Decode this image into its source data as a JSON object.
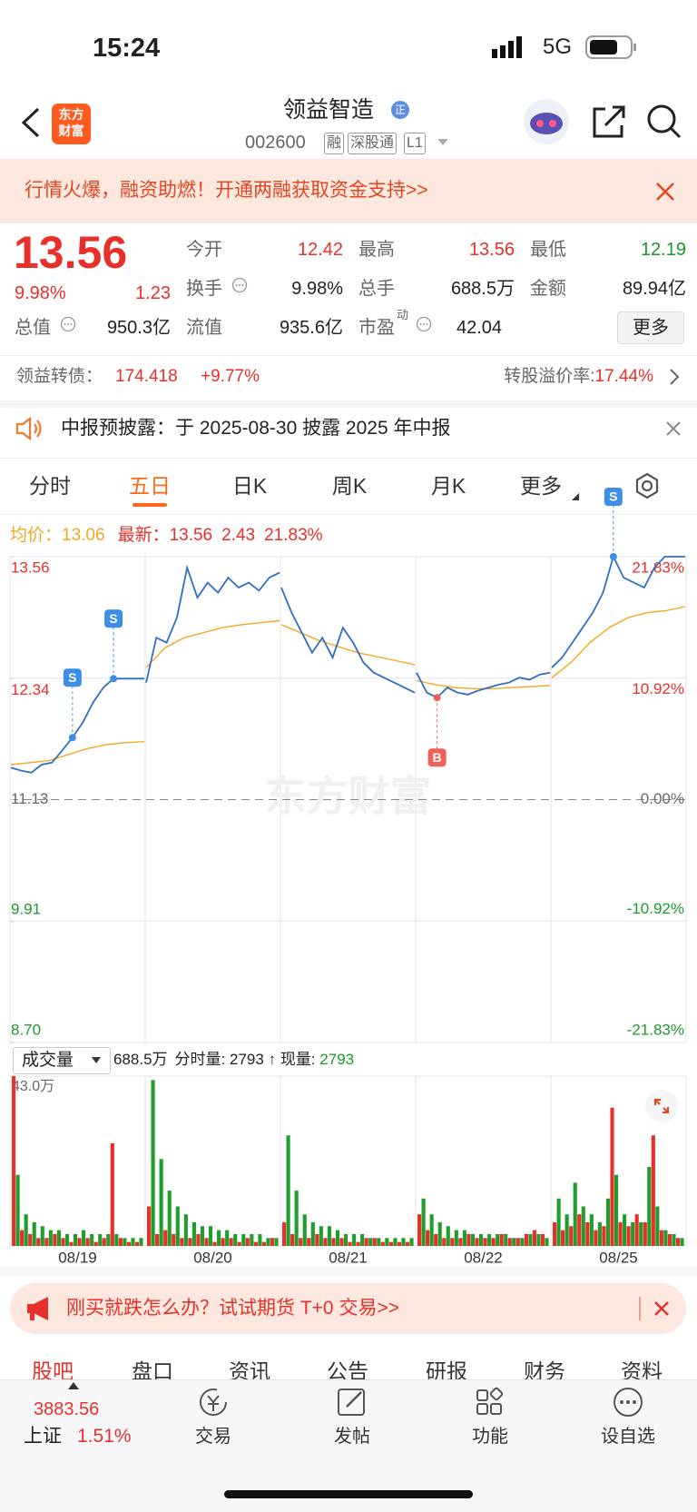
{
  "status_bar": {
    "time": "15:24",
    "network": "5G"
  },
  "header": {
    "logo": [
      "东方",
      "财富"
    ],
    "name": "领益智造",
    "badge": "正",
    "code": "002600",
    "tags": [
      "融",
      "深股通",
      "L1"
    ]
  },
  "promo": "行情火爆，融资助燃！开通两融获取资金支持>>",
  "quote": {
    "price": "13.56",
    "change_pct": "9.98%",
    "change": "1.23",
    "stats": [
      {
        "label": "今开",
        "value": "12.42"
      },
      {
        "label": "最高",
        "value": "13.56"
      },
      {
        "label": "最低",
        "value": "12.19"
      },
      {
        "label": "换手",
        "value": "9.98%"
      },
      {
        "label": "总手",
        "value": "688.5万"
      },
      {
        "label": "金额",
        "value": "89.94亿"
      },
      {
        "label": "总值",
        "value": "950.3亿"
      },
      {
        "label": "流值",
        "value": "935.6亿"
      },
      {
        "label": "市盈",
        "sup": "动",
        "value": "42.04"
      }
    ],
    "more": "更多"
  },
  "bond": {
    "label": "领益转债：",
    "price": "174.418",
    "change_pct": "+9.77%",
    "premium_label": "转股溢价率:",
    "premium": "17.44%"
  },
  "notice": "中报预披露：于 2025-08-30 披露 2025 年中报",
  "tabs": [
    "分时",
    "五日",
    "日K",
    "周K",
    "月K",
    "更多"
  ],
  "chart_info": {
    "avg": "13.06",
    "latest": "13.56",
    "change": "2.43",
    "change_pct": "21.83%"
  },
  "volume_info": {
    "selector": "成交量",
    "total": "688.5万",
    "tick_label": "分时量:",
    "tick_value": "2793",
    "arrow": "↑",
    "current_label": "现量:",
    "current_value": "2793"
  },
  "chart_data": [
    {
      "type": "line",
      "watermark": "东方财富",
      "ylim": [
        8.7,
        13.56
      ],
      "yticks": [
        13.56,
        12.34,
        11.13,
        9.91,
        {
          "value": 8.7,
          "label": "8.70"
        }
      ],
      "y2lim": [
        -21.83,
        21.83
      ],
      "y2ticks": [
        {
          "value": 21.83,
          "label": "21.83%"
        },
        {
          "value": 10.92,
          "label": "10.92%"
        },
        {
          "value": 0,
          "label": "0.00%"
        },
        {
          "value": -10.92,
          "label": "-10.92%"
        },
        {
          "value": -21.83,
          "label": "-21.83%"
        }
      ],
      "series": [
        {
          "name": "均价：",
          "color": "#f5a623",
          "values": [
            [
              11.48,
              11.5,
              11.52,
              11.58,
              11.64,
              11.68,
              11.7,
              11.71
            ],
            [
              12.45,
              12.65,
              12.75,
              12.8,
              12.85,
              12.88,
              12.9,
              12.92
            ],
            [
              12.88,
              12.8,
              12.72,
              12.66,
              12.6,
              12.56,
              12.52,
              12.48
            ],
            [
              12.32,
              12.28,
              12.25,
              12.24,
              12.24,
              12.25,
              12.26,
              12.27
            ],
            [
              12.35,
              12.5,
              12.7,
              12.85,
              12.95,
              13.0,
              13.02,
              13.06
            ]
          ]
        },
        {
          "name": "最新：",
          "color": "#2e6fc4",
          "values": [
            [
              11.45,
              11.42,
              11.4,
              11.48,
              11.5,
              11.62,
              11.75,
              11.9,
              12.1,
              12.25,
              12.34,
              12.34,
              12.34,
              12.34
            ],
            [
              12.3,
              12.75,
              12.7,
              12.95,
              13.45,
              13.15,
              13.3,
              13.2,
              13.35,
              13.25,
              13.3,
              13.22,
              13.35,
              13.4
            ],
            [
              13.25,
              13.0,
              12.8,
              12.6,
              12.75,
              12.55,
              12.85,
              12.7,
              12.5,
              12.4,
              12.35,
              12.3,
              12.25,
              12.2
            ],
            [
              12.4,
              12.2,
              12.15,
              12.25,
              12.2,
              12.18,
              12.22,
              12.25,
              12.28,
              12.3,
              12.35,
              12.33,
              12.38,
              12.4
            ],
            [
              12.45,
              12.55,
              12.7,
              12.85,
              13.0,
              13.2,
              13.56,
              13.35,
              13.3,
              13.25,
              13.45,
              13.56,
              13.56,
              13.56
            ]
          ]
        }
      ],
      "annotations": [
        {
          "text": "S",
          "x": "08/19",
          "y": 11.75,
          "side": "above",
          "color": "#3d8ee8"
        },
        {
          "text": "S",
          "x": "08/19",
          "y": 12.34,
          "side": "above",
          "color": "#3d8ee8"
        },
        {
          "text": "B",
          "x": "08/22",
          "y": 12.15,
          "side": "below",
          "color": "#f0605a"
        },
        {
          "text": "S",
          "x": "08/25",
          "y": 13.56,
          "side": "above",
          "color": "#3d8ee8"
        }
      ]
    },
    {
      "type": "bar",
      "categories": [
        "08/19",
        "08/20",
        "08/21",
        "08/22",
        "08/25"
      ],
      "ylim": [
        0,
        43
      ],
      "yticks": [
        {
          "value": 43,
          "label": "43.0万"
        }
      ],
      "series": [
        {
          "color": "#e8302b",
          "values": [
            [
              43,
              4,
              3,
              2,
              2,
              3,
              2,
              1,
              2,
              2,
              1,
              2,
              26,
              2,
              1,
              1
            ],
            [
              10,
              3,
              4,
              3,
              2,
              2,
              3,
              2,
              1,
              2,
              2,
              1,
              2,
              1,
              1,
              2
            ],
            [
              6,
              3,
              2,
              2,
              3,
              2,
              2,
              2,
              1,
              1,
              2,
              2,
              1,
              1,
              1,
              1
            ],
            [
              8,
              4,
              3,
              2,
              2,
              2,
              3,
              2,
              2,
              2,
              3,
              2,
              2,
              3,
              4,
              3
            ],
            [
              6,
              4,
              5,
              8,
              6,
              4,
              5,
              35,
              6,
              5,
              8,
              6,
              28,
              4,
              3,
              2
            ]
          ]
        },
        {
          "color": "#1f9e2c",
          "values": [
            [
              18,
              8,
              6,
              5,
              4,
              4,
              3,
              3,
              4,
              3,
              3,
              3,
              3,
              2,
              2,
              2
            ],
            [
              42,
              22,
              14,
              10,
              8,
              6,
              5,
              5,
              4,
              4,
              3,
              3,
              3,
              3,
              2,
              2
            ],
            [
              28,
              14,
              8,
              6,
              5,
              5,
              4,
              3,
              3,
              3,
              2,
              2,
              2,
              2,
              2,
              2
            ],
            [
              12,
              8,
              6,
              5,
              4,
              4,
              3,
              3,
              3,
              3,
              3,
              2,
              2,
              3,
              3,
              2
            ],
            [
              12,
              8,
              16,
              10,
              8,
              6,
              12,
              18,
              8,
              6,
              6,
              20,
              10,
              4,
              3,
              2
            ]
          ]
        }
      ]
    }
  ],
  "promo2": "刚买就跌怎么办？试试期货 T+0 交易>>",
  "sub_tabs": [
    "股吧",
    "盘口",
    "资讯",
    "公告",
    "研报",
    "财务",
    "资料"
  ],
  "bottom_bar": {
    "index_value": "3883.56",
    "index_name": "上证",
    "index_pct": "1.51%",
    "buttons": [
      "交易",
      "发帖",
      "功能",
      "设自选"
    ]
  }
}
